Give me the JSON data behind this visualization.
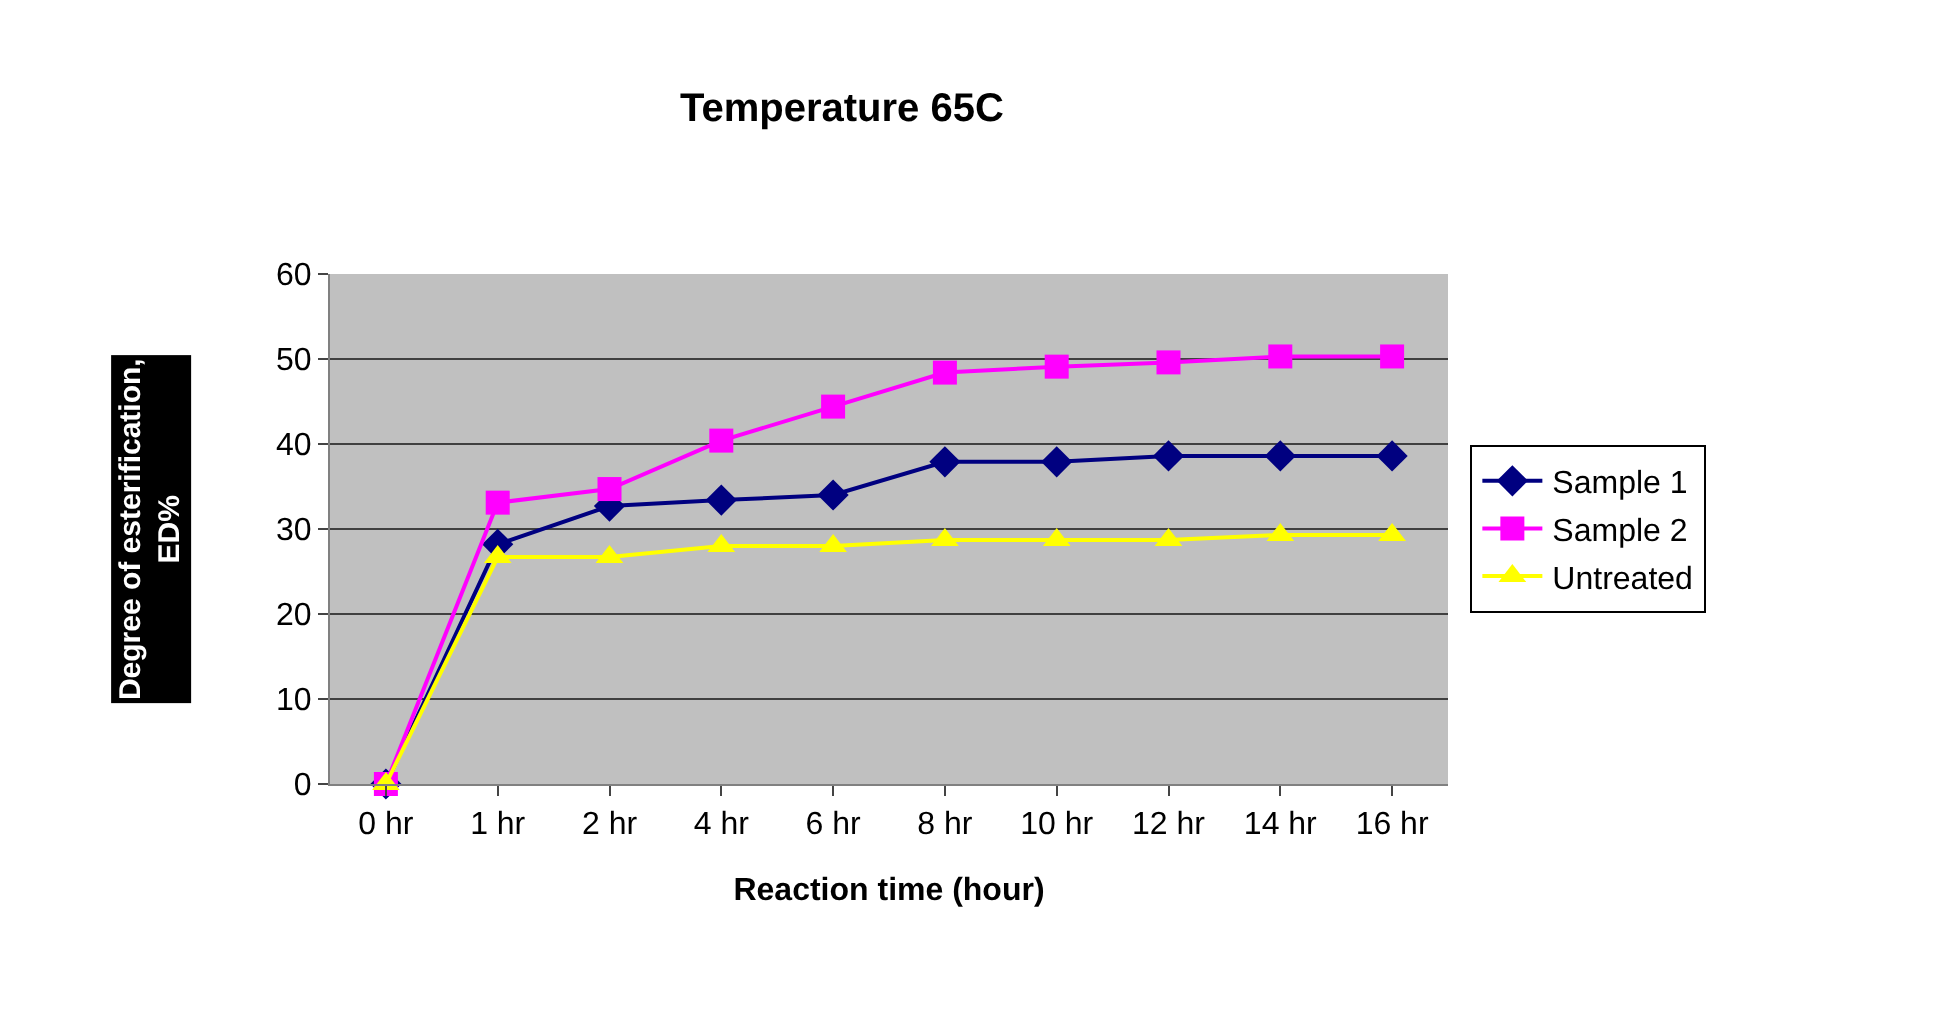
{
  "chart_data": {
    "type": "line",
    "title": "Temperature 65C",
    "xlabel": "Reaction time (hour)",
    "ylabel": "Degree of esterification,\nED%",
    "categories": [
      "0 hr",
      "1 hr",
      "2 hr",
      "4 hr",
      "6 hr",
      "8 hr",
      "10 hr",
      "12 hr",
      "14 hr",
      "16 hr"
    ],
    "series": [
      {
        "name": "Sample 1",
        "color": "#000080",
        "marker": "diamond",
        "values": [
          0,
          28.2,
          32.7,
          33.4,
          34.0,
          37.9,
          37.9,
          38.6,
          38.6,
          38.6
        ]
      },
      {
        "name": "Sample 2",
        "color": "#ff00ff",
        "marker": "square",
        "values": [
          0,
          33.1,
          34.7,
          40.4,
          44.4,
          48.4,
          49.1,
          49.6,
          50.3,
          50.3
        ]
      },
      {
        "name": "Untreated",
        "color": "#ffff00",
        "marker": "triangle",
        "values": [
          0,
          26.7,
          26.7,
          28.0,
          28.0,
          28.7,
          28.7,
          28.7,
          29.3,
          29.3
        ]
      }
    ],
    "ylim": [
      0,
      60
    ],
    "yticks": [
      0,
      10,
      20,
      30,
      40,
      50,
      60
    ],
    "grid": "y",
    "legend": "right"
  }
}
